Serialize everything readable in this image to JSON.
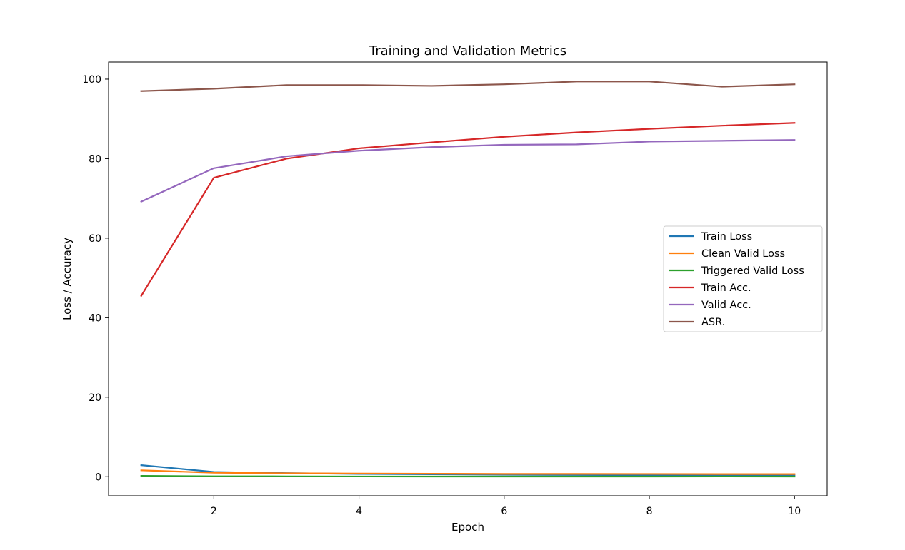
{
  "chart_data": {
    "type": "line",
    "title": "Training and Validation Metrics",
    "xlabel": "Epoch",
    "ylabel": "Loss / Accuracy",
    "x": [
      1,
      2,
      3,
      4,
      5,
      6,
      7,
      8,
      9,
      10
    ],
    "xlim": [
      0.55,
      10.45
    ],
    "ylim": [
      -4.8,
      104.3
    ],
    "xticks": [
      2,
      4,
      6,
      8,
      10
    ],
    "yticks": [
      0,
      20,
      40,
      60,
      80,
      100
    ],
    "grid": false,
    "legend_position": "center-right",
    "series": [
      {
        "name": "Train Loss",
        "color": "#1f77b4",
        "values": [
          2.9,
          1.2,
          0.9,
          0.7,
          0.6,
          0.5,
          0.45,
          0.4,
          0.38,
          0.35
        ]
      },
      {
        "name": "Clean Valid Loss",
        "color": "#ff7f0e",
        "values": [
          1.6,
          1.0,
          0.85,
          0.8,
          0.75,
          0.7,
          0.7,
          0.68,
          0.65,
          0.65
        ]
      },
      {
        "name": "Triggered Valid Loss",
        "color": "#2ca02c",
        "values": [
          0.2,
          0.1,
          0.08,
          0.06,
          0.05,
          0.05,
          0.04,
          0.04,
          0.06,
          0.05
        ]
      },
      {
        "name": "Train Acc.",
        "color": "#d62728",
        "values": [
          45.5,
          75.2,
          80.0,
          82.6,
          84.1,
          85.5,
          86.6,
          87.5,
          88.3,
          89.0
        ]
      },
      {
        "name": "Valid Acc.",
        "color": "#9467bd",
        "values": [
          69.2,
          77.6,
          80.6,
          82.0,
          82.9,
          83.5,
          83.6,
          84.3,
          84.5,
          84.7
        ]
      },
      {
        "name": "ASR.",
        "color": "#8c564b",
        "values": [
          97.0,
          97.6,
          98.5,
          98.5,
          98.3,
          98.7,
          99.4,
          99.4,
          98.1,
          98.7
        ]
      }
    ]
  }
}
